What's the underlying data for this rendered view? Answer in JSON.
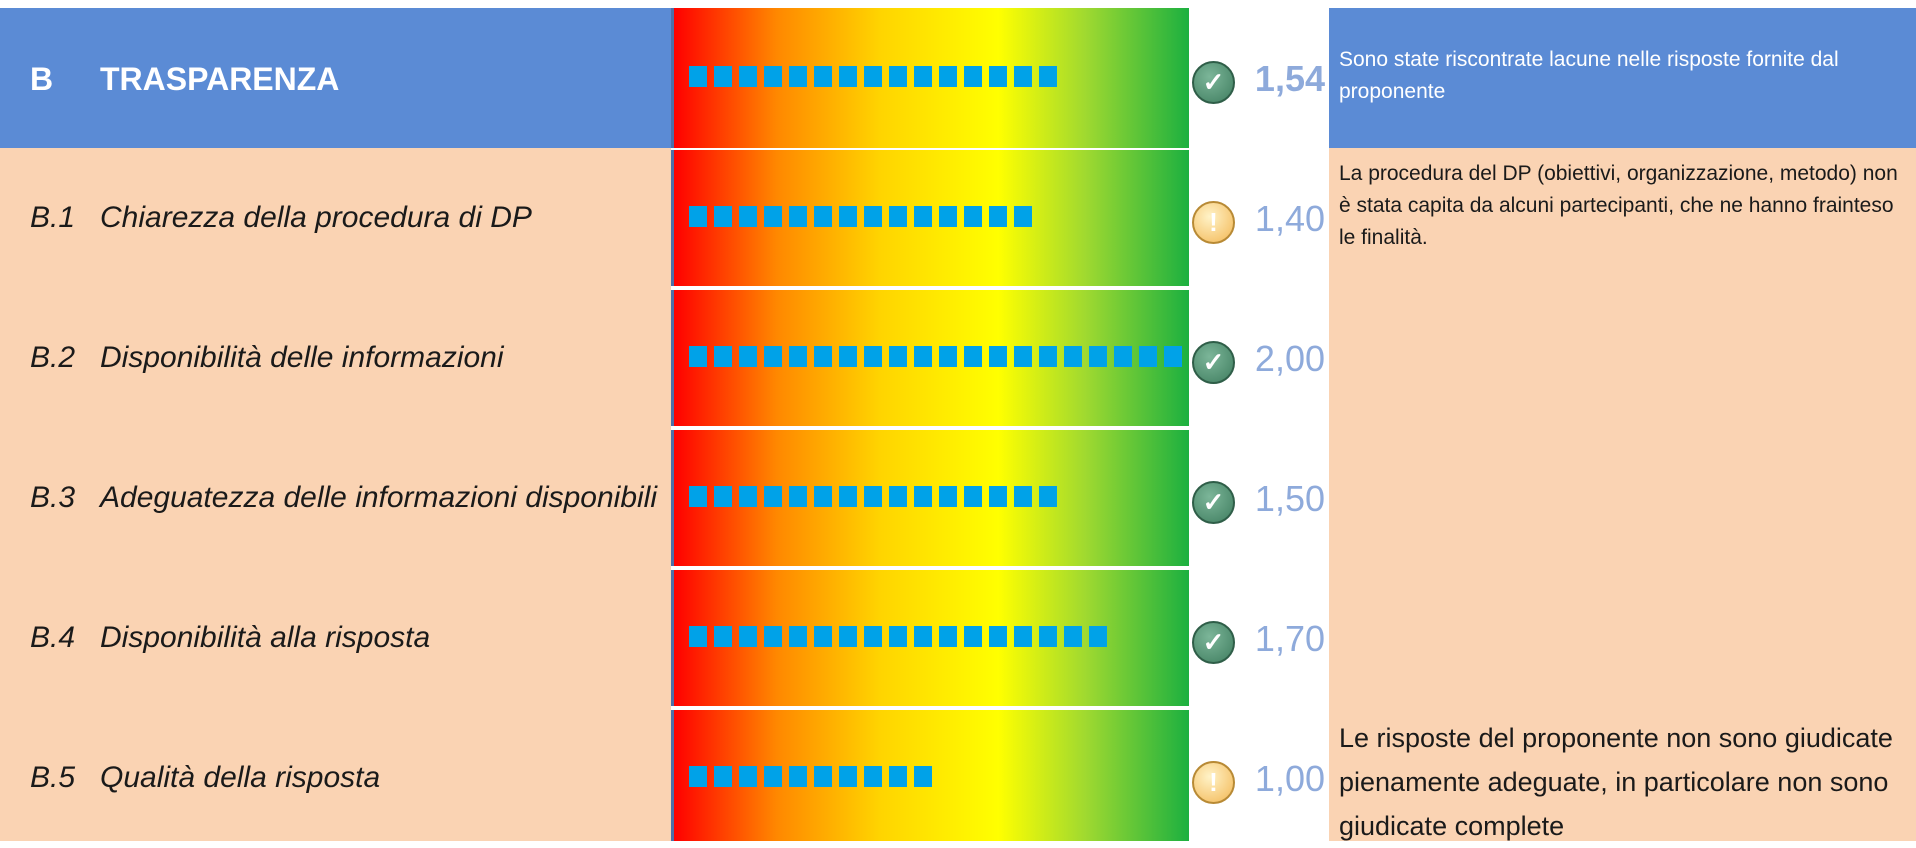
{
  "header": {
    "code": "B",
    "title": "TRASPARENZA",
    "score": "1,54",
    "status_icon": "check-icon",
    "bar_level": 1.54,
    "note": "Sono state riscontrate lacune nelle risposte fornite dal proponente"
  },
  "rows": [
    {
      "code": "B.1",
      "title": "Chiarezza della procedura di DP",
      "score": "1,40",
      "status_icon": "warning-icon",
      "bar_level": 1.4
    },
    {
      "code": "B.2",
      "title": "Disponibilità delle informazioni",
      "score": "2,00",
      "status_icon": "check-icon",
      "bar_level": 2.0
    },
    {
      "code": "B.3",
      "title": "Adeguatezza delle informazioni disponibili",
      "score": "1,50",
      "status_icon": "check-icon",
      "bar_level": 1.5
    },
    {
      "code": "B.4",
      "title": "Disponibilità alla risposta",
      "score": "1,70",
      "status_icon": "check-icon",
      "bar_level": 1.7
    },
    {
      "code": "B.5",
      "title": "Qualità della risposta",
      "score": "1,00",
      "status_icon": "warning-icon",
      "bar_level": 1.0
    }
  ],
  "notes": {
    "b1": "La procedura del DP (obiettivi, organizzazione, metodo) non è stata capita da alcuni partecipanti, che ne hanno frainteso le finalità.",
    "b5": "Le risposte del proponente non sono giudicate pienamente adeguate, in particolare non sono giudicate complete"
  },
  "colors": {
    "header_bg": "#5b8bd5",
    "row_bg": "#fad3b3",
    "bar_block": "#00a2e8",
    "score_text": "#8eaadb"
  }
}
